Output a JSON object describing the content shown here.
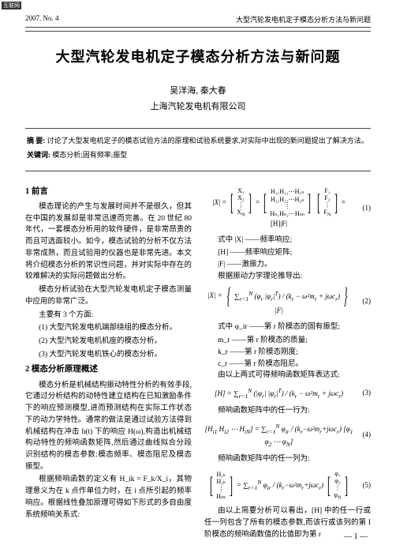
{
  "header": {
    "left": "2007. No. 4",
    "right": "大型汽轮发电机定子模态分析方法与新问题"
  },
  "title": "大型汽轮发电机定子模态分析方法与新问题",
  "authors": "吴洋海, 秦大春",
  "affiliation": "上海汽轮发电机有限公司",
  "abstract": {
    "label": "摘 要:",
    "text": "讨论了大型发电机定子的模态试验方法的原理和试验系统要求,对实际中出现的新问题提出了解决方法。"
  },
  "keywords": {
    "label": "关键词:",
    "text": "模态分析;固有频率;振型"
  },
  "left": {
    "sec1_head": "1 前言",
    "p1": "模态理论的产生与发展时间并不是很久，但其在中国的发展却是非常迅速而完善。在 20 世纪 80 年代，一套模态分析用的软件硬件，是非常昂贵的而且可选面较小。如今，模态试验的分析不仅方法非常成熟，而且试验用的仪器也是非常先进。本文将介绍模态分析的常识性问题，并对实际中存在的较难解决的实际问题做出分析。",
    "p2": "模态分析试验在大型汽轮发电机定子模态测量中应用的非常广泛。",
    "p3": "主要有 3 个方面:",
    "li1": "(1) 大型汽轮发电机端部绕组的模态分析。",
    "li2": "(2) 大型汽轮发电机机座的模态分析。",
    "li3": "(3) 大型汽轮发电机铁心的模态分析。",
    "sec2_head": "2 模态分析原理概述",
    "p4": "模态分析是机械结构振动特性分析的有效手段,它通过分析结构的动特性建立结构在已知激励条件下的响应预测模型,进而预测结构在实际工作状态下的动力学特性。通常的做法是通过试验方法得到机械结构在冲击 h(t) 下的响应 H(ω),构造出机械结构动特性的频响函数矩阵,然后通过曲线拟合分段识别结构的模态参数:模态频率、模态阻尼及模态振型。",
    "p5": "根据频响函数的定义有 H_ik = F_k/X_i，其物理意义为在 k 点作单位力时，在 i 点所引起的频率响应。根据线性叠加原理可得如下形式的多自由度系统频响关系式:"
  },
  "right": {
    "eq1_num": "(1)",
    "t1": "式中 |X| ——频率响应;",
    "t2": "[H] ——频率响应矩阵;",
    "t3": "|F| ——激振力。",
    "t4": "根据振动力学理论推导出:",
    "eq2_num": "(2)",
    "t5": "式中 φ_ir ——第 r 阶模态的固有振型;",
    "t6": "m_r ——第 r 阶模态的质量;",
    "t7": "k_r ——第 r 阶模态刚度;",
    "t8": "c_r ——第 r 阶模态阻尼。",
    "t9": "由以上两式可得频响函数矩阵表达式:",
    "eq3_num": "(3)",
    "t10": "频响函数矩阵中的任一行为:",
    "eq4_num": "(4)",
    "t11": "频响函数矩阵中的任一列为:",
    "eq5_num": "(5)",
    "p_end": "由以上简要分析可以看出，[H] 中的任一行或任一列包含了所有的模态参数,而该行或该列的第 I 阶模态的频响函数值的比值即为第 r"
  },
  "footer": "— 1 —",
  "watermark": "互联网"
}
